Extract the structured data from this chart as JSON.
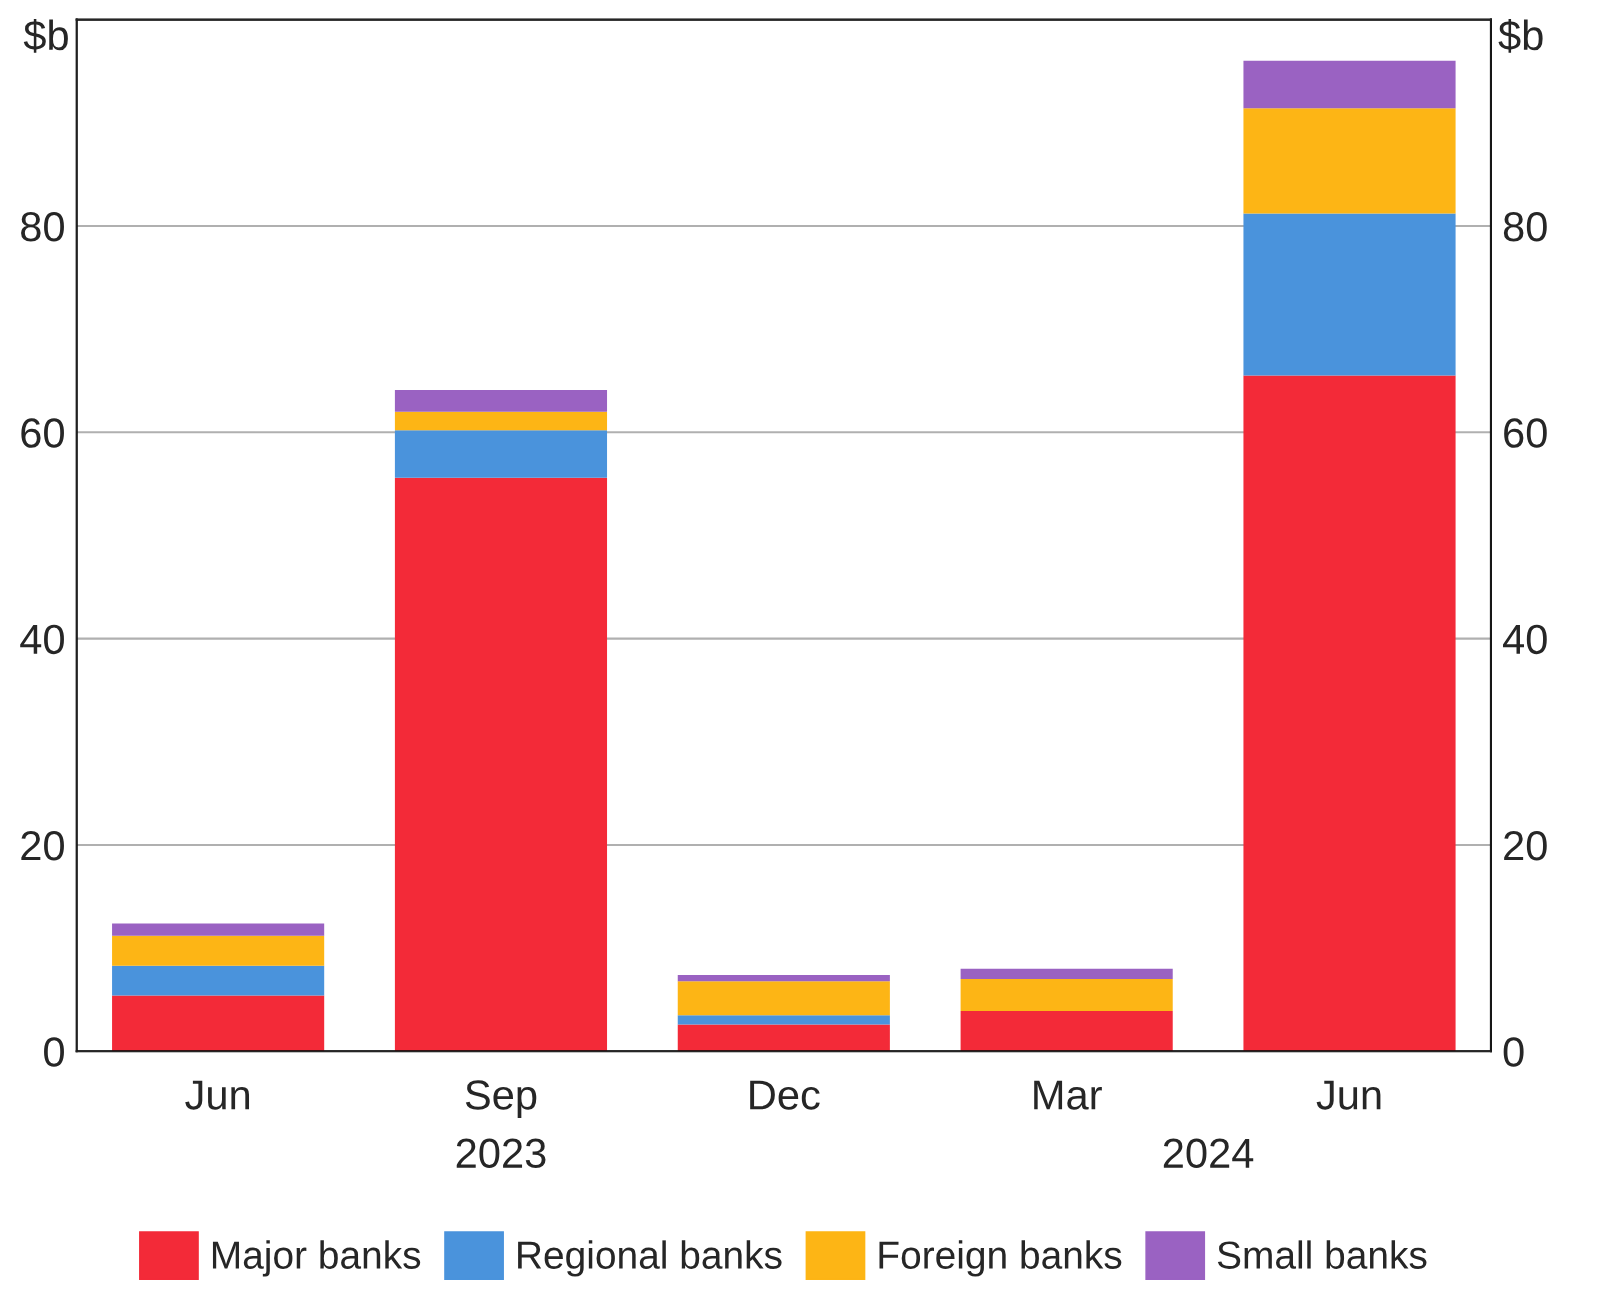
{
  "chart_data": {
    "type": "bar",
    "stacked": true,
    "ylabel": "$b",
    "y2label": "$b",
    "categories": [
      "Jun",
      "Sep",
      "Dec",
      "Mar",
      "Jun"
    ],
    "series": [
      {
        "name": "Major banks",
        "color": "#f32a38",
        "values": [
          5.4,
          55.6,
          2.6,
          3.9,
          65.5
        ]
      },
      {
        "name": "Regional banks",
        "color": "#4a93dc",
        "values": [
          2.9,
          4.6,
          0.9,
          0,
          15.7
        ]
      },
      {
        "name": "Foreign banks",
        "color": "#fdb515",
        "values": [
          2.9,
          1.8,
          3.3,
          3.1,
          10.2
        ]
      },
      {
        "name": "Small banks",
        "color": "#9a62c2",
        "values": [
          1.2,
          2.1,
          0.6,
          1.0,
          4.6
        ]
      }
    ],
    "ylim": [
      0,
      100
    ],
    "yticks": [
      0,
      20,
      40,
      60,
      80
    ],
    "y2lim": [
      0,
      100
    ],
    "y2ticks": [
      0,
      20,
      40,
      60,
      80
    ],
    "grid": "y",
    "legend": "bottom",
    "annotations": [
      "2023",
      "2024"
    ]
  }
}
